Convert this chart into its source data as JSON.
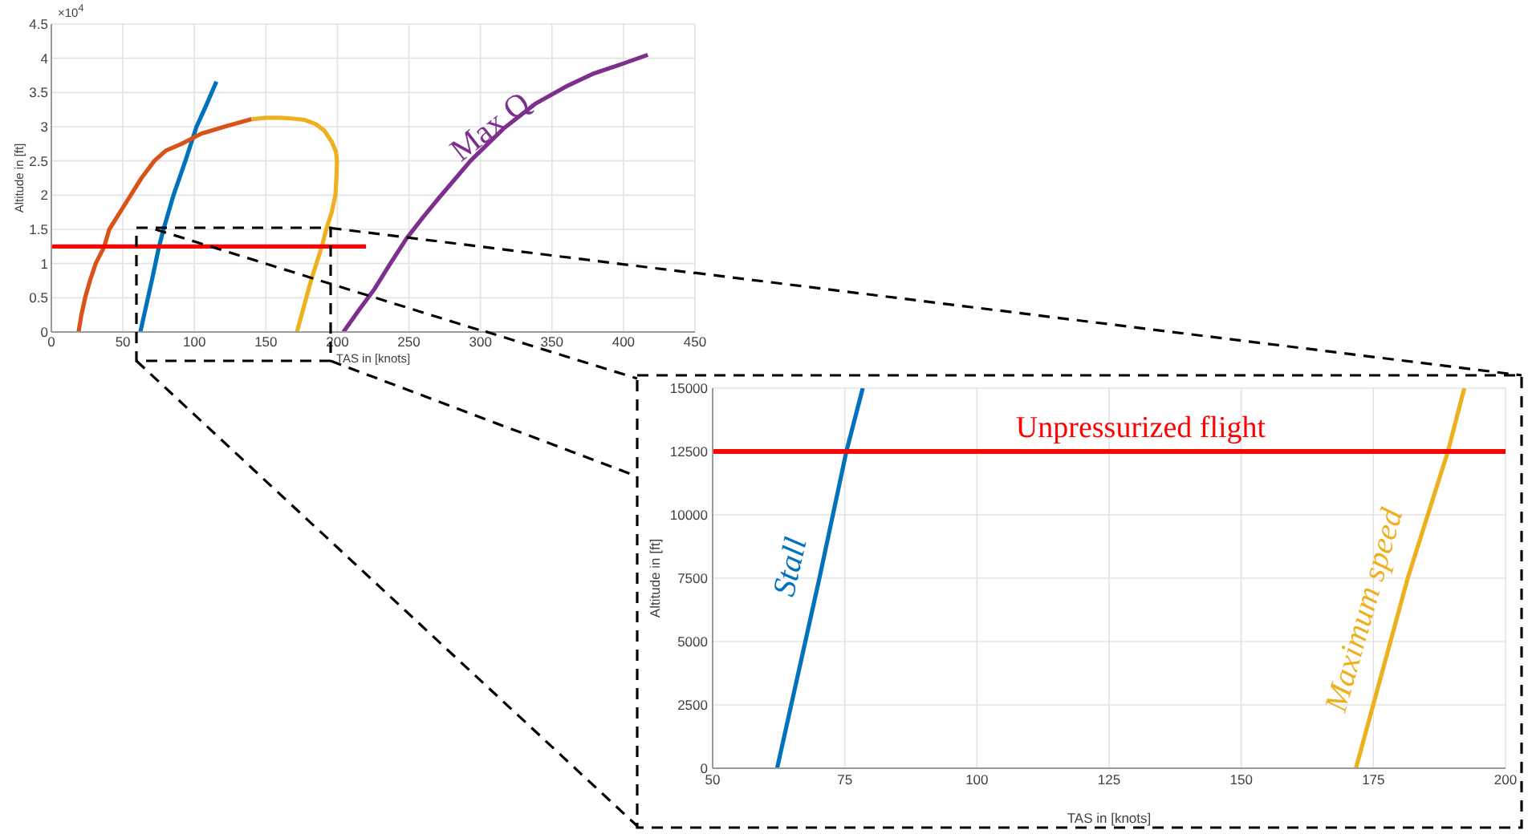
{
  "chart_data": [
    {
      "type": "line",
      "xlabel": "TAS in [knots]",
      "ylabel": "Altitude in [ft]",
      "annotations": [
        "×10$^{4}$"
      ],
      "series": [
        {
          "color": "#0072bd",
          "x": [
            62.2,
            70.2,
            75.3,
            78.4,
            85.4,
            93.7,
            101.5,
            108,
            115.4
          ],
          "values": [
            0,
            0.75,
            1.25,
            1.5,
            2,
            2.5,
            3,
            3.3,
            3.66
          ]
        },
        {
          "color": "#d95319",
          "x": [
            19,
            21,
            23.6,
            27,
            31,
            37,
            40.5,
            48,
            55.5,
            63,
            72,
            80,
            91,
            105,
            121,
            140
          ],
          "values": [
            0,
            0.25,
            0.5,
            0.75,
            1,
            1.25,
            1.5,
            1.75,
            2,
            2.25,
            2.5,
            2.65,
            2.75,
            2.9,
            3,
            3.11
          ]
        },
        {
          "color": "#edb120",
          "x": [
            140,
            150,
            160,
            168,
            177,
            184.7,
            191,
            196,
            199,
            199.7,
            199.3,
            198.6,
            196,
            192.2,
            189.1,
            181.5,
            171.7
          ],
          "values": [
            3.11,
            3.13,
            3.13,
            3.12,
            3.1,
            3.04,
            2.94,
            2.78,
            2.63,
            2.5,
            2.25,
            2,
            1.75,
            1.5,
            1.25,
            0.75,
            0
          ]
        },
        {
          "name": "Max Q",
          "color": "#7e2f8e",
          "x": [
            204.2,
            215,
            226,
            237,
            248.4,
            260,
            271,
            282,
            293,
            316,
            338,
            361,
            379.5,
            398,
            417
          ],
          "values": [
            0,
            0.32,
            0.63,
            1,
            1.37,
            1.68,
            1.96,
            2.23,
            2.5,
            2.97,
            3.33,
            3.6,
            3.78,
            3.91,
            4.05
          ]
        },
        {
          "color": "#ff0000",
          "x": [
            0,
            220
          ],
          "values": [
            1.25,
            1.25
          ]
        },
        {
          "color": "#000000",
          "line_style": "dashed",
          "x": [
            72.7,
            303.6
          ],
          "values": [
            1.5,
            0
          ]
        },
        {
          "color": "#000000",
          "line_style": "dashed",
          "x": [
            195,
            450
          ],
          "values": [
            1.52,
            0.86
          ]
        }
      ],
      "xlim": [
        0,
        450
      ],
      "xticks": [
        0,
        50,
        100,
        150,
        200,
        250,
        300,
        350,
        400,
        450
      ],
      "ylim": [
        0,
        4.5
      ],
      "yticks": [
        0,
        0.5,
        1,
        1.5,
        2,
        2.5,
        3,
        3.5,
        4,
        4.5
      ],
      "grid": true
    },
    {
      "type": "line",
      "xlabel": "TAS in [knots]",
      "ylabel": "Altitude in [ft]",
      "series": [
        {
          "name": "Stall",
          "color": "#0072bd",
          "x": [
            62.2,
            70.2,
            75.3,
            78.4
          ],
          "values": [
            0,
            7500,
            12500,
            15000
          ]
        },
        {
          "name": "Maximum speed",
          "color": "#edb120",
          "x": [
            171.7,
            181.5,
            189.1,
            192.2
          ],
          "values": [
            0,
            7500,
            12500,
            15000
          ]
        }
      ],
      "ref_lines": [
        {
          "axis": "y",
          "value": 12500,
          "label": "Unpressurized flight",
          "color": "#ff0000"
        }
      ],
      "xlim": [
        50,
        200
      ],
      "xticks": [
        50,
        75,
        100,
        125,
        150,
        175,
        200
      ],
      "ylim": [
        0,
        15000
      ],
      "yticks": [
        0,
        2500,
        5000,
        7500,
        10000,
        12500,
        15000
      ],
      "grid": true
    }
  ]
}
